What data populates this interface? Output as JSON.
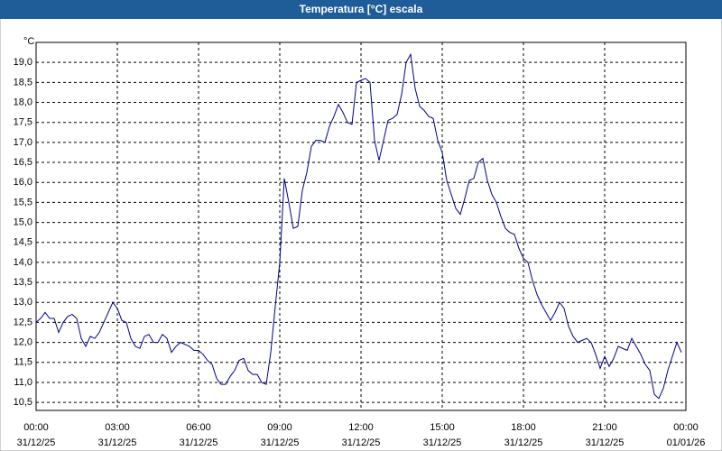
{
  "chart_data": {
    "type": "line",
    "title": "Temperatura [°C] escala",
    "y_unit": "°C",
    "color": "#00008b",
    "grid": true,
    "x": [
      0,
      10,
      20,
      30,
      40,
      50,
      60,
      70,
      80,
      90,
      100,
      110,
      120,
      130,
      140,
      150,
      160,
      170,
      180,
      190,
      200,
      210,
      220,
      230,
      240,
      250,
      260,
      270,
      280,
      290,
      300,
      310,
      320,
      330,
      340,
      350,
      360,
      370,
      380,
      390,
      400,
      410,
      420,
      430,
      440,
      450,
      460,
      470,
      480,
      490,
      500,
      510,
      520,
      530,
      540,
      550,
      560,
      570,
      580,
      590,
      600,
      610,
      620,
      630,
      640,
      650,
      660,
      670,
      680,
      690,
      700,
      710,
      720,
      730,
      740,
      750,
      760,
      770,
      780,
      790,
      800,
      810,
      820,
      830,
      840,
      850,
      860,
      870,
      880,
      890,
      900,
      910,
      920,
      930,
      940,
      950,
      960,
      970,
      980,
      990,
      1000,
      1010,
      1020,
      1030,
      1040,
      1050,
      1060,
      1070,
      1080,
      1090,
      1100,
      1110,
      1120,
      1130,
      1140,
      1150,
      1160,
      1170,
      1180,
      1190,
      1200,
      1210,
      1220,
      1230,
      1240,
      1250,
      1260,
      1270,
      1280,
      1290,
      1300,
      1310,
      1320,
      1330,
      1340,
      1350,
      1360,
      1370,
      1380,
      1390,
      1400,
      1410,
      1420,
      1430
    ],
    "values": [
      12.5,
      12.6,
      12.75,
      12.6,
      12.6,
      12.25,
      12.5,
      12.65,
      12.7,
      12.6,
      12.1,
      11.9,
      12.15,
      12.1,
      12.25,
      12.5,
      12.75,
      13.0,
      12.85,
      12.55,
      12.5,
      12.1,
      11.9,
      11.85,
      12.15,
      12.2,
      12.0,
      12.0,
      12.2,
      12.1,
      11.75,
      11.9,
      12.0,
      11.95,
      11.9,
      11.8,
      11.8,
      11.7,
      11.55,
      11.45,
      11.1,
      10.95,
      10.95,
      11.15,
      11.3,
      11.55,
      11.6,
      11.3,
      11.2,
      11.2,
      11.0,
      10.95,
      11.75,
      12.9,
      14.0,
      16.1,
      15.5,
      14.85,
      14.9,
      15.8,
      16.25,
      16.9,
      17.05,
      17.05,
      17.0,
      17.4,
      17.65,
      17.95,
      17.75,
      17.5,
      17.45,
      18.5,
      18.55,
      18.6,
      18.5,
      17.05,
      16.55,
      17.05,
      17.55,
      17.6,
      17.7,
      18.2,
      19.0,
      19.2,
      18.35,
      17.9,
      17.8,
      17.65,
      17.6,
      17.05,
      16.75,
      16.05,
      15.7,
      15.35,
      15.2,
      15.6,
      16.05,
      16.1,
      16.5,
      16.6,
      16.05,
      15.7,
      15.5,
      15.15,
      14.85,
      14.75,
      14.7,
      14.35,
      14.1,
      14.0,
      13.55,
      13.2,
      12.95,
      12.75,
      12.55,
      12.75,
      13.0,
      12.85,
      12.4,
      12.15,
      12.0,
      12.05,
      12.1,
      12.0,
      11.7,
      11.35,
      11.65,
      11.4,
      11.6,
      11.9,
      11.85,
      11.8,
      12.1,
      11.9,
      11.7,
      11.45,
      11.3,
      10.7,
      10.6,
      10.85,
      11.3,
      11.65,
      12.0,
      11.75
    ],
    "xlim": [
      0,
      1440
    ],
    "xticks": [
      {
        "value": 0,
        "label": "00:00"
      },
      {
        "value": 180,
        "label": "03:00"
      },
      {
        "value": 360,
        "label": "06:00"
      },
      {
        "value": 540,
        "label": "09:00"
      },
      {
        "value": 720,
        "label": "12:00"
      },
      {
        "value": 900,
        "label": "15:00"
      },
      {
        "value": 1080,
        "label": "18:00"
      },
      {
        "value": 1260,
        "label": "21:00"
      },
      {
        "value": 1440,
        "label": "00:00"
      }
    ],
    "xtick_dates": [
      "31/12/25",
      "31/12/25",
      "31/12/25",
      "31/12/25",
      "31/12/25",
      "31/12/25",
      "31/12/25",
      "31/12/25",
      "01/01/26"
    ],
    "ylim": [
      10.3,
      19.5
    ],
    "yticks": [
      {
        "value": 10.5,
        "label": "10,5"
      },
      {
        "value": 11.0,
        "label": "11,0"
      },
      {
        "value": 11.5,
        "label": "11,5"
      },
      {
        "value": 12.0,
        "label": "12,0"
      },
      {
        "value": 12.5,
        "label": "12,5"
      },
      {
        "value": 13.0,
        "label": "13,0"
      },
      {
        "value": 13.5,
        "label": "13,5"
      },
      {
        "value": 14.0,
        "label": "14,0"
      },
      {
        "value": 14.5,
        "label": "14,5"
      },
      {
        "value": 15.0,
        "label": "15,0"
      },
      {
        "value": 15.5,
        "label": "15,5"
      },
      {
        "value": 16.0,
        "label": "16,0"
      },
      {
        "value": 16.5,
        "label": "16,5"
      },
      {
        "value": 17.0,
        "label": "17,0"
      },
      {
        "value": 17.5,
        "label": "17,5"
      },
      {
        "value": 18.0,
        "label": "18,0"
      },
      {
        "value": 18.5,
        "label": "18,5"
      },
      {
        "value": 19.0,
        "label": "19,0"
      }
    ]
  }
}
